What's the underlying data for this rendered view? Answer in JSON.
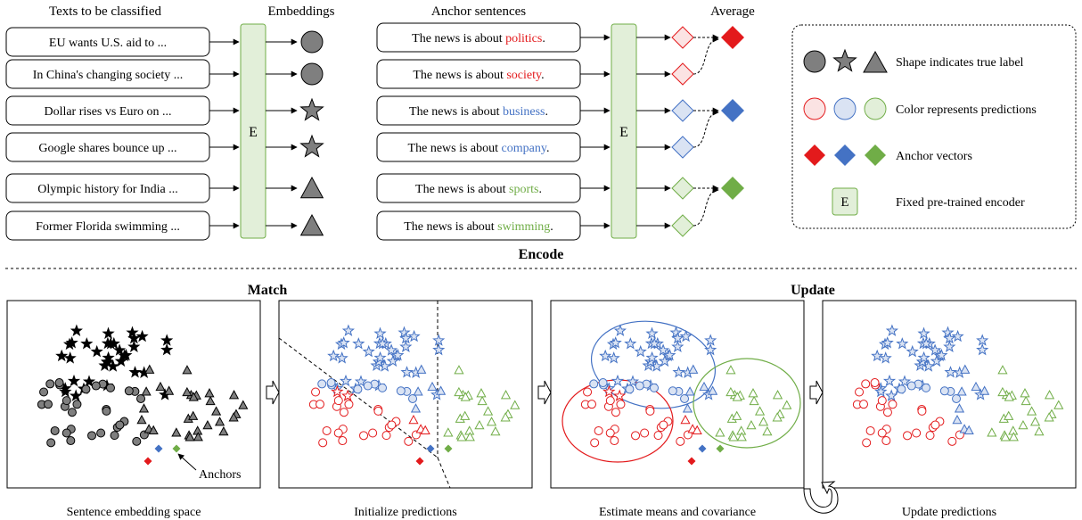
{
  "encode_section": {
    "texts_header": "Texts to be classified",
    "embeddings_header": "Embeddings",
    "anchor_header": "Anchor sentences",
    "average_header": "Average",
    "texts": [
      "EU wants U.S. aid to ...",
      "In China's changing society ...",
      "Dollar rises vs Euro on ...",
      "Google shares bounce up ...",
      "Olympic history for India ...",
      "Former Florida swimming ..."
    ],
    "anchors": [
      {
        "prefix": "The news is about ",
        "word": "politics",
        "suffix": ".",
        "color": "#e31a1c"
      },
      {
        "prefix": "The news is about ",
        "word": "society",
        "suffix": ".",
        "color": "#e31a1c"
      },
      {
        "prefix": "The news is about ",
        "word": "business",
        "suffix": ".",
        "color": "#4472c4"
      },
      {
        "prefix": "The news is about ",
        "word": "company",
        "suffix": ".",
        "color": "#4472c4"
      },
      {
        "prefix": "The news is about ",
        "word": "sports",
        "suffix": ".",
        "color": "#70ad47"
      },
      {
        "prefix": "The news is about ",
        "word": "swimming",
        "suffix": ".",
        "color": "#70ad47"
      }
    ],
    "encoder_label": "E",
    "title": "Encode"
  },
  "legend": {
    "shape_text": "Shape indicates true label",
    "color_text": "Color represents predictions",
    "anchor_text": "Anchor vectors",
    "encoder_text": "Fixed pre-trained encoder",
    "encoder_label": "E"
  },
  "bottom": {
    "match_title": "Match",
    "update_title": "Update",
    "anchors_note": "Anchors",
    "panels": [
      "Sentence embedding space",
      "Initialize predictions",
      "Estimate means and covariance",
      "Update predictions"
    ]
  },
  "colors": {
    "red": "#e31a1c",
    "blue": "#4472c4",
    "green": "#70ad47",
    "gray": "#7f7f7f",
    "encoder_fill": "#e2efd9",
    "encoder_stroke": "#70ad47"
  }
}
